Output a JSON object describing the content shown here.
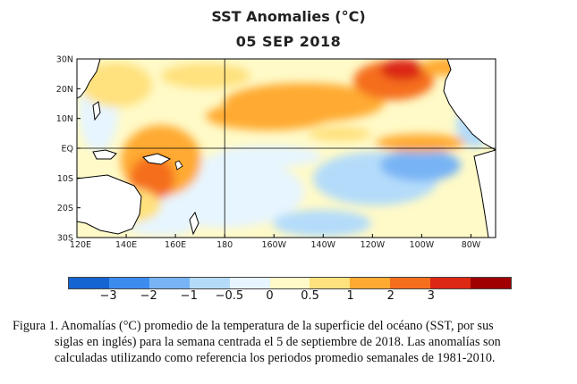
{
  "title": "SST Anomalies (°C)",
  "date": "05 SEP 2018",
  "map": {
    "lon_labels": [
      "120E",
      "140E",
      "160E",
      "180",
      "160W",
      "140W",
      "120W",
      "100W",
      "80W"
    ],
    "lat_labels": [
      "30N",
      "20N",
      "10N",
      "EQ",
      "10S",
      "20S",
      "30S"
    ]
  },
  "colorbar": {
    "colors": [
      "#1464d2",
      "#3c8cf0",
      "#78b4f5",
      "#b4dcfa",
      "#e6f5ff",
      "#fffac8",
      "#ffe17d",
      "#ffaa32",
      "#f56e1e",
      "#dc2814",
      "#a00000"
    ],
    "labels": [
      "−3",
      "−2",
      "−1",
      "−0.5",
      "0",
      "0.5",
      "1",
      "2",
      "3"
    ]
  },
  "caption": {
    "line1": "Figura 1. Anomalías (°C) promedio de la temperatura de la superficie del océano (SST, por sus",
    "line2": "siglas en inglés) para la semana centrada el 5 de septiembre  de 2018. Las anomalías son",
    "line3": "calculadas utilizando como referencia los periodos promedio semanales de 1981-2010."
  }
}
